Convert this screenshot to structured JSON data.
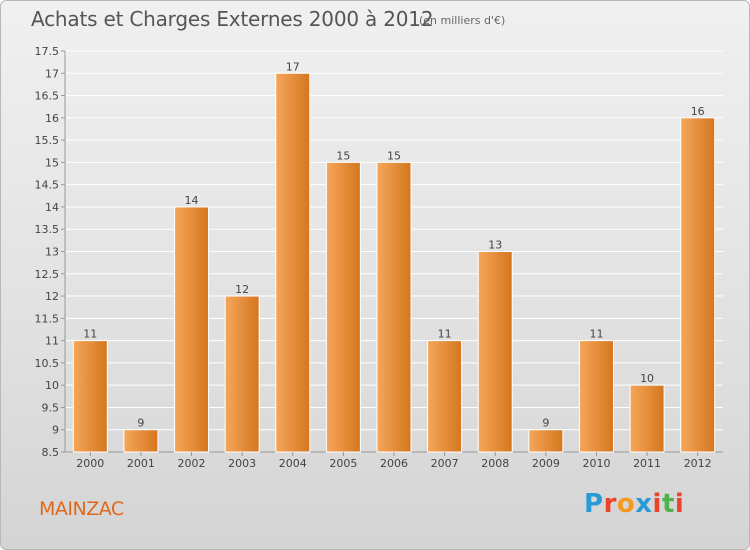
{
  "title": "Achats et Charges Externes 2000 à 2012",
  "subtitle": "(en milliers d'€)",
  "location": "MAINZAC",
  "brand": {
    "letters": [
      "P",
      "r",
      "o",
      "x",
      "i",
      "t",
      "i"
    ],
    "colors": [
      "#2a9ad6",
      "#e8452b",
      "#f39a1f",
      "#2a9ad6",
      "#e8452b",
      "#4db34a",
      "#e8452b"
    ]
  },
  "colors": {
    "bar_light": "#f6a65a",
    "bar_dark": "#d4761e",
    "grid": "#ffffff",
    "axis_text": "#444444"
  },
  "chart_data": {
    "type": "bar",
    "categories": [
      "2000",
      "2001",
      "2002",
      "2003",
      "2004",
      "2005",
      "2006",
      "2007",
      "2008",
      "2009",
      "2010",
      "2011",
      "2012"
    ],
    "values": [
      11,
      9,
      14,
      12,
      17,
      15,
      15,
      11,
      13,
      9,
      11,
      10,
      16
    ],
    "title": "Achats et Charges Externes 2000 à 2012",
    "subtitle": "(en milliers d'€)",
    "ylim": [
      8.5,
      17.5
    ],
    "yticks": [
      8.5,
      9,
      9.5,
      10,
      10.5,
      11,
      11.5,
      12,
      12.5,
      13,
      13.5,
      14,
      14.5,
      15,
      15.5,
      16,
      16.5,
      17,
      17.5
    ],
    "grid": true,
    "data_labels": true
  }
}
